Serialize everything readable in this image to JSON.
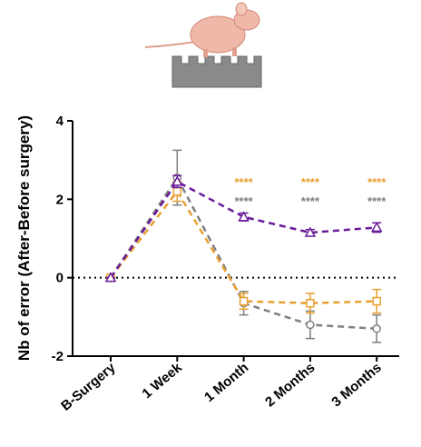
{
  "chart_data": {
    "type": "line",
    "y_label": "Nb of error (After-Before surgery)",
    "categories": [
      "B-Surgery",
      "1 Week",
      "1 Month",
      "2 Months",
      "3 Months"
    ],
    "ylim": [
      -2,
      4
    ],
    "yticks": [
      -2,
      0,
      2,
      4
    ],
    "reference_line": 0,
    "series": [
      {
        "color": "#7f7f7f",
        "marker": "circle",
        "values": [
          0,
          2.55,
          -0.65,
          -1.2,
          -1.3
        ],
        "errors": [
          0,
          0.7,
          0.3,
          0.35,
          0.35
        ],
        "significance": [
          null,
          null,
          "****",
          "****",
          "****"
        ]
      },
      {
        "color": "#e8a030",
        "marker": "square",
        "values": [
          0,
          2.2,
          -0.6,
          -0.65,
          -0.6
        ],
        "errors": [
          0,
          0.25,
          0.2,
          0.25,
          0.3
        ],
        "significance": [
          null,
          null,
          "****",
          "****",
          "****"
        ]
      },
      {
        "color": "#6a1b9a",
        "marker": "triangle",
        "values": [
          0,
          2.45,
          1.55,
          1.15,
          1.28
        ],
        "errors": [
          0,
          0.15,
          0.1,
          0.08,
          0.12
        ]
      }
    ]
  }
}
